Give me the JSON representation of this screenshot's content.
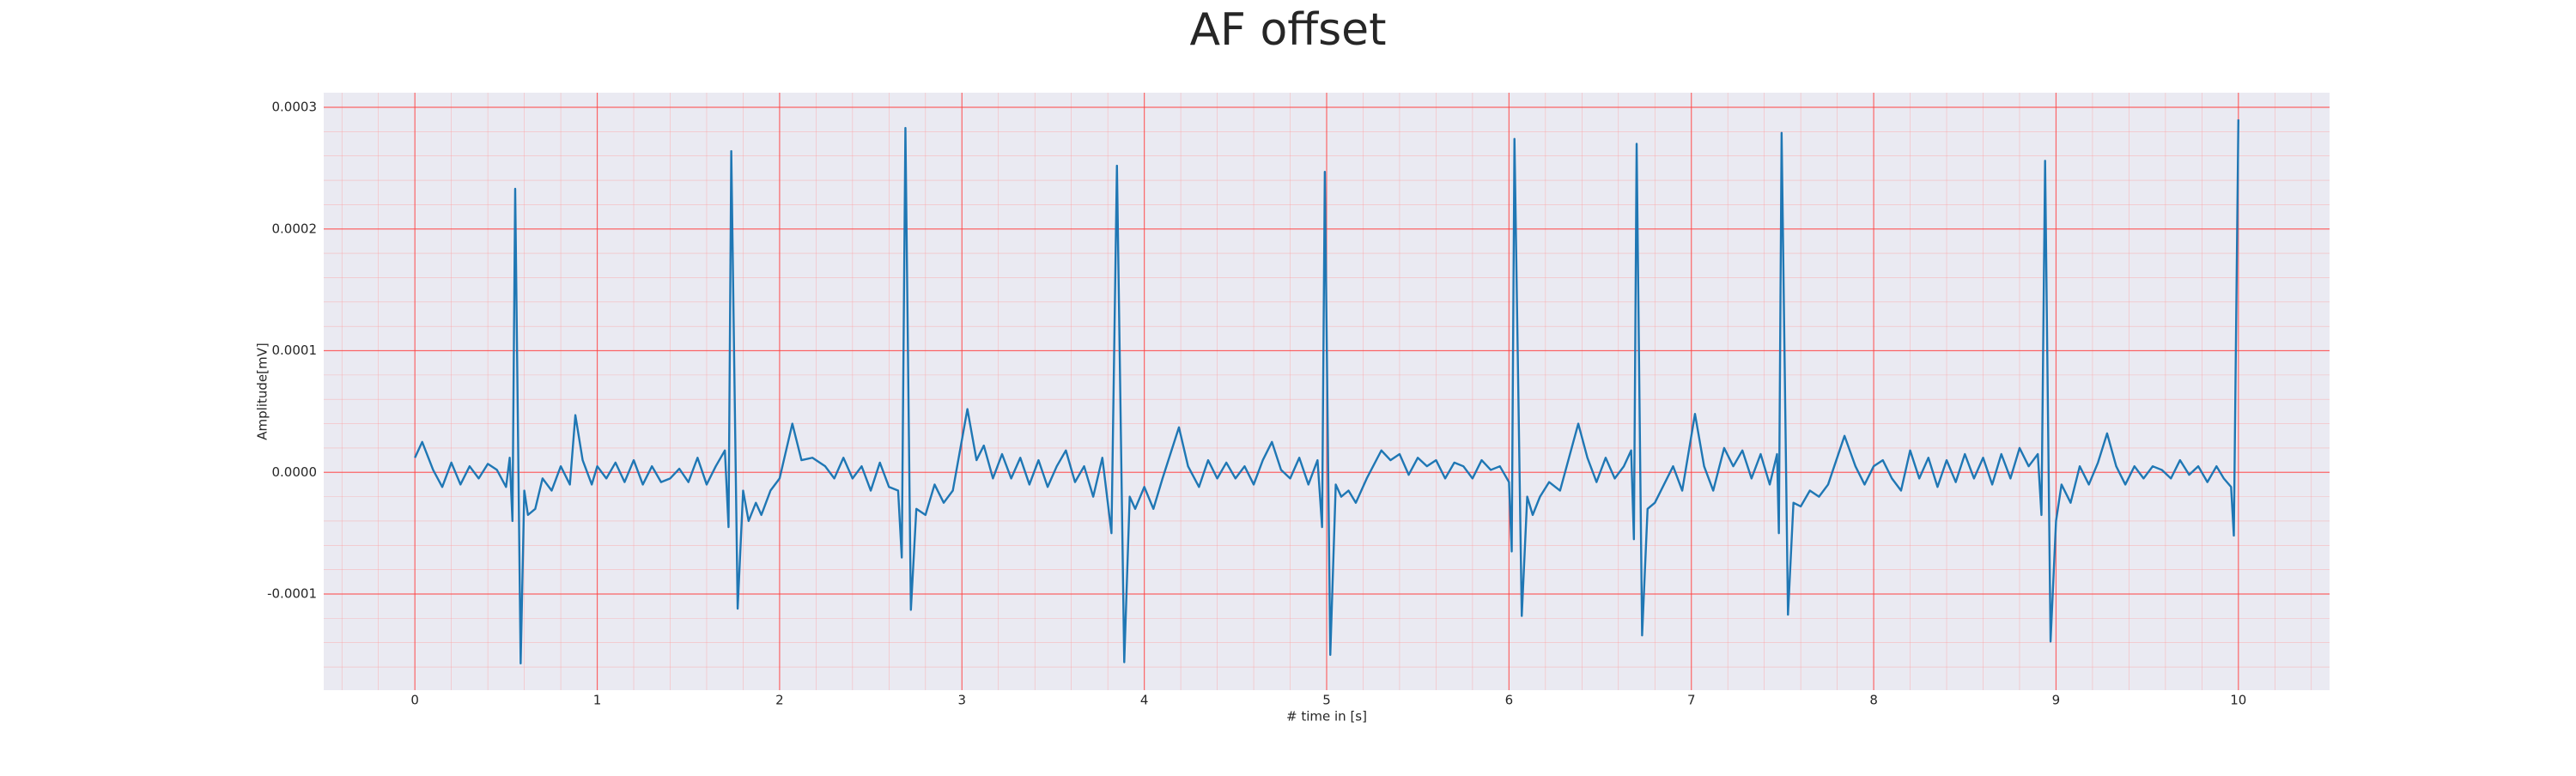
{
  "chart_data": {
    "type": "line",
    "title": "AF offset",
    "x_label": "# time in [s]",
    "y_label": "Amplitude[mV]",
    "color": "#1f77b4",
    "grid": true,
    "minor_divisions": 5,
    "xlim": [
      -0.5,
      10.5
    ],
    "xticks": [
      0,
      1,
      2,
      3,
      4,
      5,
      6,
      7,
      8,
      9,
      10
    ],
    "ylim": [
      -0.000179,
      0.000312
    ],
    "yticks": [
      -0.0001,
      {
        "value": 0,
        "label": "0.0000"
      },
      0.0001,
      0.0002,
      0.0003
    ],
    "x": [
      0,
      0.04,
      0.1,
      0.15,
      0.2,
      0.25,
      0.3,
      0.35,
      0.4,
      0.45,
      0.5,
      0.52,
      0.535,
      0.55,
      0.58,
      0.6,
      0.62,
      0.66,
      0.7,
      0.75,
      0.8,
      0.85,
      0.88,
      0.92,
      0.97,
      1.0,
      1.05,
      1.1,
      1.15,
      1.2,
      1.25,
      1.3,
      1.35,
      1.4,
      1.45,
      1.5,
      1.55,
      1.6,
      1.65,
      1.7,
      1.72,
      1.735,
      1.77,
      1.8,
      1.83,
      1.87,
      1.9,
      1.95,
      2.0,
      2.07,
      2.12,
      2.18,
      2.25,
      2.3,
      2.35,
      2.4,
      2.45,
      2.5,
      2.55,
      2.6,
      2.65,
      2.67,
      2.69,
      2.72,
      2.75,
      2.8,
      2.85,
      2.9,
      2.95,
      3.03,
      3.08,
      3.12,
      3.17,
      3.22,
      3.27,
      3.32,
      3.37,
      3.42,
      3.47,
      3.52,
      3.57,
      3.62,
      3.67,
      3.72,
      3.77,
      3.82,
      3.85,
      3.89,
      3.92,
      3.95,
      4.0,
      4.05,
      4.1,
      4.19,
      4.24,
      4.3,
      4.35,
      4.4,
      4.45,
      4.5,
      4.55,
      4.6,
      4.65,
      4.7,
      4.75,
      4.8,
      4.85,
      4.9,
      4.95,
      4.975,
      4.99,
      5.02,
      5.05,
      5.08,
      5.12,
      5.16,
      5.22,
      5.3,
      5.35,
      5.4,
      5.45,
      5.5,
      5.55,
      5.6,
      5.65,
      5.7,
      5.75,
      5.8,
      5.85,
      5.9,
      5.95,
      6.0,
      6.015,
      6.03,
      6.07,
      6.1,
      6.13,
      6.17,
      6.22,
      6.28,
      6.38,
      6.43,
      6.48,
      6.53,
      6.58,
      6.63,
      6.67,
      6.685,
      6.7,
      6.73,
      6.76,
      6.8,
      6.85,
      6.9,
      6.95,
      7.02,
      7.07,
      7.12,
      7.18,
      7.23,
      7.28,
      7.33,
      7.38,
      7.43,
      7.47,
      7.48,
      7.495,
      7.53,
      7.56,
      7.6,
      7.65,
      7.7,
      7.75,
      7.84,
      7.9,
      7.95,
      8.0,
      8.05,
      8.1,
      8.15,
      8.2,
      8.25,
      8.3,
      8.35,
      8.4,
      8.45,
      8.5,
      8.55,
      8.6,
      8.65,
      8.7,
      8.75,
      8.8,
      8.85,
      8.9,
      8.92,
      8.94,
      8.97,
      9.0,
      9.03,
      9.08,
      9.13,
      9.18,
      9.23,
      9.28,
      9.33,
      9.38,
      9.43,
      9.48,
      9.53,
      9.58,
      9.63,
      9.68,
      9.73,
      9.78,
      9.83,
      9.88,
      9.92,
      9.96,
      9.975,
      10.0
    ],
    "values": [
      1.2e-05,
      2.5e-05,
      2e-06,
      -1.2e-05,
      8e-06,
      -1e-05,
      5e-06,
      -5e-06,
      7e-06,
      2e-06,
      -1.2e-05,
      1.2e-05,
      -4e-05,
      0.000233,
      -0.000157,
      -1.5e-05,
      -3.5e-05,
      -3e-05,
      -5e-06,
      -1.5e-05,
      5e-06,
      -1e-05,
      4.7e-05,
      1e-05,
      -1e-05,
      5e-06,
      -5e-06,
      8e-06,
      -8e-06,
      1e-05,
      -1e-05,
      5e-06,
      -8e-06,
      -5e-06,
      3e-06,
      -8e-06,
      1.2e-05,
      -1e-05,
      5e-06,
      1.8e-05,
      -4.5e-05,
      0.000264,
      -0.000112,
      -1.5e-05,
      -4e-05,
      -2.5e-05,
      -3.5e-05,
      -1.5e-05,
      -5e-06,
      4e-05,
      1e-05,
      1.2e-05,
      5e-06,
      -5e-06,
      1.2e-05,
      -5e-06,
      5e-06,
      -1.5e-05,
      8e-06,
      -1.2e-05,
      -1.5e-05,
      -7e-05,
      0.000283,
      -0.000113,
      -3e-05,
      -3.5e-05,
      -1e-05,
      -2.5e-05,
      -1.5e-05,
      5.2e-05,
      1e-05,
      2.2e-05,
      -5e-06,
      1.5e-05,
      -5e-06,
      1.2e-05,
      -1e-05,
      1e-05,
      -1.2e-05,
      5e-06,
      1.8e-05,
      -8e-06,
      5e-06,
      -2e-05,
      1.2e-05,
      -5e-05,
      0.000252,
      -0.000156,
      -2e-05,
      -3e-05,
      -1.2e-05,
      -3e-05,
      -5e-06,
      3.7e-05,
      5e-06,
      -1.2e-05,
      1e-05,
      -5e-06,
      8e-06,
      -5e-06,
      5e-06,
      -1e-05,
      1e-05,
      2.5e-05,
      2e-06,
      -5e-06,
      1.2e-05,
      -1e-05,
      1e-05,
      -4.5e-05,
      0.000247,
      -0.00015,
      -1e-05,
      -2e-05,
      -1.5e-05,
      -2.5e-05,
      -5e-06,
      1.8e-05,
      1e-05,
      1.5e-05,
      -2e-06,
      1.2e-05,
      5e-06,
      1e-05,
      -5e-06,
      8e-06,
      5e-06,
      -5e-06,
      1e-05,
      2e-06,
      5e-06,
      -8e-06,
      -6.5e-05,
      0.000274,
      -0.000118,
      -2e-05,
      -3.5e-05,
      -2e-05,
      -8e-06,
      -1.5e-05,
      4e-05,
      1.2e-05,
      -8e-06,
      1.2e-05,
      -5e-06,
      5e-06,
      1.8e-05,
      -5.5e-05,
      0.00027,
      -0.000134,
      -3e-05,
      -2.5e-05,
      -1e-05,
      5e-06,
      -1.5e-05,
      4.8e-05,
      5e-06,
      -1.5e-05,
      2e-05,
      5e-06,
      1.8e-05,
      -5e-06,
      1.5e-05,
      -1e-05,
      1.5e-05,
      -5e-05,
      0.000279,
      -0.000117,
      -2.5e-05,
      -2.8e-05,
      -1.5e-05,
      -2e-05,
      -1e-05,
      3e-05,
      5e-06,
      -1e-05,
      5e-06,
      1e-05,
      -5e-06,
      -1.5e-05,
      1.8e-05,
      -5e-06,
      1.2e-05,
      -1.2e-05,
      1e-05,
      -8e-06,
      1.5e-05,
      -5e-06,
      1.2e-05,
      -1e-05,
      1.5e-05,
      -5e-06,
      2e-05,
      5e-06,
      1.5e-05,
      -3.5e-05,
      0.000256,
      -0.000139,
      -4e-05,
      -1e-05,
      -2.5e-05,
      5e-06,
      -1e-05,
      8e-06,
      3.2e-05,
      5e-06,
      -1e-05,
      5e-06,
      -5e-06,
      5e-06,
      2e-06,
      -5e-06,
      1e-05,
      -2e-06,
      5e-06,
      -8e-06,
      5e-06,
      -5e-06,
      -1.2e-05,
      -5.2e-05,
      0.00029
    ]
  }
}
